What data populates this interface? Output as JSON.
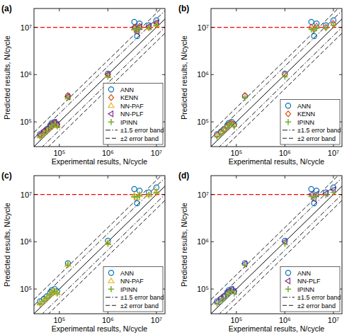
{
  "chart_data": [
    {
      "type": "scatter",
      "title": "(a)",
      "xlabel": "Experimental results, N/cycle",
      "ylabel": "Predicted results, N/cycle",
      "log": true,
      "grid": false,
      "legend": "lower right",
      "xlim": [
        30000,
        15000000
      ],
      "ylim": [
        30000,
        25000000
      ],
      "xticks": [
        {
          "value": 100000,
          "label": "10⁵"
        },
        {
          "value": 1000000,
          "label": "10⁶"
        },
        {
          "value": 10000000,
          "label": "10⁷"
        }
      ],
      "yticks": [
        {
          "value": 100000,
          "label": "10⁵"
        },
        {
          "value": 1000000,
          "label": "10⁶"
        },
        {
          "value": 10000000,
          "label": "10⁷"
        }
      ],
      "x": [
        40000,
        48000,
        55000,
        65000,
        70000,
        80000,
        90000,
        150000,
        1000000,
        3500000,
        4000000,
        4500000,
        7000000,
        10000000
      ],
      "series": [
        {
          "name": "ANN",
          "color": "#0072BD",
          "marker": "circle",
          "values": [
            55000,
            62000,
            70000,
            85000,
            95000,
            100000,
            90000,
            350000,
            1050000,
            13000000,
            6500000,
            12000000,
            11000000,
            14000000
          ]
        },
        {
          "name": "KENN",
          "color": "#D95319",
          "marker": "diamond",
          "values": [
            52000,
            60000,
            68000,
            80000,
            90000,
            95000,
            85000,
            360000,
            1000000,
            10000000,
            9000000,
            10500000,
            10000000,
            12000000
          ]
        },
        {
          "name": "NN-PAF",
          "color": "#EDB120",
          "marker": "triangle",
          "values": [
            50000,
            58000,
            66000,
            78000,
            88000,
            92000,
            82000,
            330000,
            950000,
            9500000,
            8500000,
            10000000,
            9800000,
            11500000
          ]
        },
        {
          "name": "NN-PLF",
          "color": "#7E2F8E",
          "marker": "triangle-left",
          "values": [
            53000,
            65000,
            72000,
            82000,
            92000,
            98000,
            88000,
            340000,
            1000000,
            10000000,
            8000000,
            10200000,
            10500000,
            12500000
          ]
        },
        {
          "name": "IPINN",
          "color": "#77AC30",
          "marker": "plus",
          "values": [
            48000,
            56000,
            64000,
            75000,
            85000,
            90000,
            80000,
            320000,
            900000,
            9000000,
            8800000,
            9500000,
            9700000,
            11000000
          ]
        }
      ],
      "error_bands": [
        {
          "name": "±1.5 error band",
          "factor": 1.5,
          "line_style": "dashdot",
          "color": "#000000"
        },
        {
          "name": "±2 error band",
          "factor": 2,
          "line_style": "dashed",
          "color": "#000000"
        }
      ],
      "threshold": {
        "value": 10000000,
        "color": "#ff0000",
        "line_style": "dashed"
      }
    },
    {
      "type": "scatter",
      "title": "(b)",
      "xlabel": "Experimental results, N/cycle",
      "ylabel": "Predicted results, N/cycle",
      "log": true,
      "grid": false,
      "legend": "lower right",
      "xlim": [
        30000,
        15000000
      ],
      "ylim": [
        30000,
        25000000
      ],
      "xticks": [
        {
          "value": 100000,
          "label": "10⁵"
        },
        {
          "value": 1000000,
          "label": "10⁶"
        },
        {
          "value": 10000000,
          "label": "10⁷"
        }
      ],
      "yticks": [
        {
          "value": 100000,
          "label": "10⁵"
        },
        {
          "value": 1000000,
          "label": "10⁶"
        },
        {
          "value": 10000000,
          "label": "10⁷"
        }
      ],
      "x": [
        40000,
        48000,
        55000,
        65000,
        70000,
        80000,
        90000,
        150000,
        1000000,
        3500000,
        4000000,
        4500000,
        7000000,
        10000000
      ],
      "series": [
        {
          "name": "ANN",
          "color": "#0072BD",
          "marker": "circle",
          "values": [
            55000,
            62000,
            70000,
            85000,
            95000,
            100000,
            90000,
            350000,
            1050000,
            13000000,
            6500000,
            12000000,
            11000000,
            14000000
          ]
        },
        {
          "name": "KENN",
          "color": "#D95319",
          "marker": "diamond",
          "values": [
            52000,
            60000,
            68000,
            80000,
            90000,
            95000,
            85000,
            360000,
            1000000,
            10000000,
            9000000,
            10500000,
            10000000,
            12000000
          ]
        },
        {
          "name": "IPINN",
          "color": "#77AC30",
          "marker": "plus",
          "values": [
            48000,
            56000,
            64000,
            75000,
            85000,
            90000,
            80000,
            320000,
            900000,
            9000000,
            8800000,
            9500000,
            9700000,
            11000000
          ]
        }
      ],
      "error_bands": [
        {
          "name": "±1.5 error band",
          "factor": 1.5,
          "line_style": "dashdot",
          "color": "#000000"
        },
        {
          "name": "±2 error band",
          "factor": 2,
          "line_style": "dashed",
          "color": "#000000"
        }
      ],
      "threshold": {
        "value": 10000000,
        "color": "#ff0000",
        "line_style": "dashed"
      }
    },
    {
      "type": "scatter",
      "title": "(c)",
      "xlabel": "Experimental results, N/cycle",
      "ylabel": "Predicted results, N/cycle",
      "log": true,
      "grid": false,
      "legend": "lower right",
      "xlim": [
        30000,
        15000000
      ],
      "ylim": [
        30000,
        25000000
      ],
      "xticks": [
        {
          "value": 100000,
          "label": "10⁵"
        },
        {
          "value": 1000000,
          "label": "10⁶"
        },
        {
          "value": 10000000,
          "label": "10⁷"
        }
      ],
      "yticks": [
        {
          "value": 100000,
          "label": "10⁵"
        },
        {
          "value": 1000000,
          "label": "10⁶"
        },
        {
          "value": 10000000,
          "label": "10⁷"
        }
      ],
      "x": [
        40000,
        48000,
        55000,
        65000,
        70000,
        80000,
        90000,
        150000,
        1000000,
        3500000,
        4000000,
        4500000,
        7000000,
        10000000
      ],
      "series": [
        {
          "name": "ANN",
          "color": "#0072BD",
          "marker": "circle",
          "values": [
            55000,
            62000,
            70000,
            85000,
            95000,
            100000,
            90000,
            350000,
            1050000,
            13000000,
            6500000,
            12000000,
            11000000,
            14000000
          ]
        },
        {
          "name": "NN-PAF",
          "color": "#EDB120",
          "marker": "triangle",
          "values": [
            50000,
            58000,
            66000,
            78000,
            88000,
            92000,
            82000,
            330000,
            950000,
            9500000,
            8500000,
            10000000,
            9800000,
            11500000
          ]
        },
        {
          "name": "IPINN",
          "color": "#77AC30",
          "marker": "plus",
          "values": [
            48000,
            56000,
            64000,
            75000,
            85000,
            90000,
            80000,
            320000,
            900000,
            9000000,
            8800000,
            9500000,
            9700000,
            11000000
          ]
        }
      ],
      "error_bands": [
        {
          "name": "±1.5 error band",
          "factor": 1.5,
          "line_style": "dashdot",
          "color": "#000000"
        },
        {
          "name": "±2 error band",
          "factor": 2,
          "line_style": "dashed",
          "color": "#000000"
        }
      ],
      "threshold": {
        "value": 10000000,
        "color": "#ff0000",
        "line_style": "dashed"
      }
    },
    {
      "type": "scatter",
      "title": "(d)",
      "xlabel": "Experimental results, N/cycle",
      "ylabel": "Predicted results, N/cycle",
      "log": true,
      "grid": false,
      "legend": "lower right",
      "xlim": [
        30000,
        15000000
      ],
      "ylim": [
        30000,
        25000000
      ],
      "xticks": [
        {
          "value": 100000,
          "label": "10⁵"
        },
        {
          "value": 1000000,
          "label": "10⁶"
        },
        {
          "value": 10000000,
          "label": "10⁷"
        }
      ],
      "yticks": [
        {
          "value": 100000,
          "label": "10⁵"
        },
        {
          "value": 1000000,
          "label": "10⁶"
        },
        {
          "value": 10000000,
          "label": "10⁷"
        }
      ],
      "x": [
        40000,
        48000,
        55000,
        65000,
        70000,
        80000,
        90000,
        150000,
        1000000,
        3500000,
        4000000,
        4500000,
        7000000,
        10000000
      ],
      "series": [
        {
          "name": "ANN",
          "color": "#0072BD",
          "marker": "circle",
          "values": [
            55000,
            62000,
            70000,
            85000,
            95000,
            100000,
            90000,
            350000,
            1050000,
            13000000,
            6500000,
            12000000,
            11000000,
            14000000
          ]
        },
        {
          "name": "NN-PLF",
          "color": "#7E2F8E",
          "marker": "triangle-left",
          "values": [
            53000,
            65000,
            72000,
            82000,
            92000,
            98000,
            88000,
            340000,
            1000000,
            10000000,
            8000000,
            10200000,
            10500000,
            12500000
          ]
        },
        {
          "name": "IPINN",
          "color": "#77AC30",
          "marker": "plus",
          "values": [
            48000,
            56000,
            64000,
            75000,
            85000,
            90000,
            80000,
            320000,
            900000,
            9000000,
            8800000,
            9500000,
            9700000,
            11000000
          ]
        }
      ],
      "error_bands": [
        {
          "name": "±1.5 error band",
          "factor": 1.5,
          "line_style": "dashdot",
          "color": "#000000"
        },
        {
          "name": "±2 error band",
          "factor": 2,
          "line_style": "dashed",
          "color": "#000000"
        }
      ],
      "threshold": {
        "value": 10000000,
        "color": "#ff0000",
        "line_style": "dashed"
      }
    }
  ]
}
